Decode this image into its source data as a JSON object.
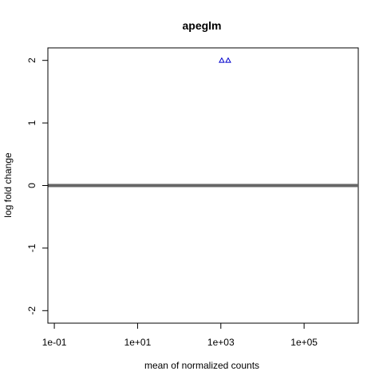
{
  "chart_data": {
    "type": "scatter",
    "title": "apeglm",
    "xlabel": "mean of normalized counts",
    "ylabel": "log fold change",
    "x_scale": "log10",
    "xlim": [
      0.07,
      2000000
    ],
    "ylim": [
      -2.2,
      2.2
    ],
    "x_ticks": [
      {
        "value": 0.1,
        "label": "1e-01"
      },
      {
        "value": 10,
        "label": "1e+01"
      },
      {
        "value": 1000,
        "label": "1e+03"
      },
      {
        "value": 100000,
        "label": "1e+05"
      }
    ],
    "y_ticks": [
      {
        "value": -2,
        "label": "-2"
      },
      {
        "value": -1,
        "label": "-1"
      },
      {
        "value": 0,
        "label": "0"
      },
      {
        "value": 1,
        "label": "1"
      },
      {
        "value": 2,
        "label": "2"
      }
    ],
    "reference_line": {
      "y": 0,
      "color": "#666666"
    },
    "grid": false,
    "legend": "none",
    "points": [
      {
        "x": 1050,
        "y": 2.0,
        "shape": "triangle",
        "color": "#0000cc"
      },
      {
        "x": 1500,
        "y": 2.0,
        "shape": "triangle",
        "color": "#0000cc"
      }
    ]
  }
}
